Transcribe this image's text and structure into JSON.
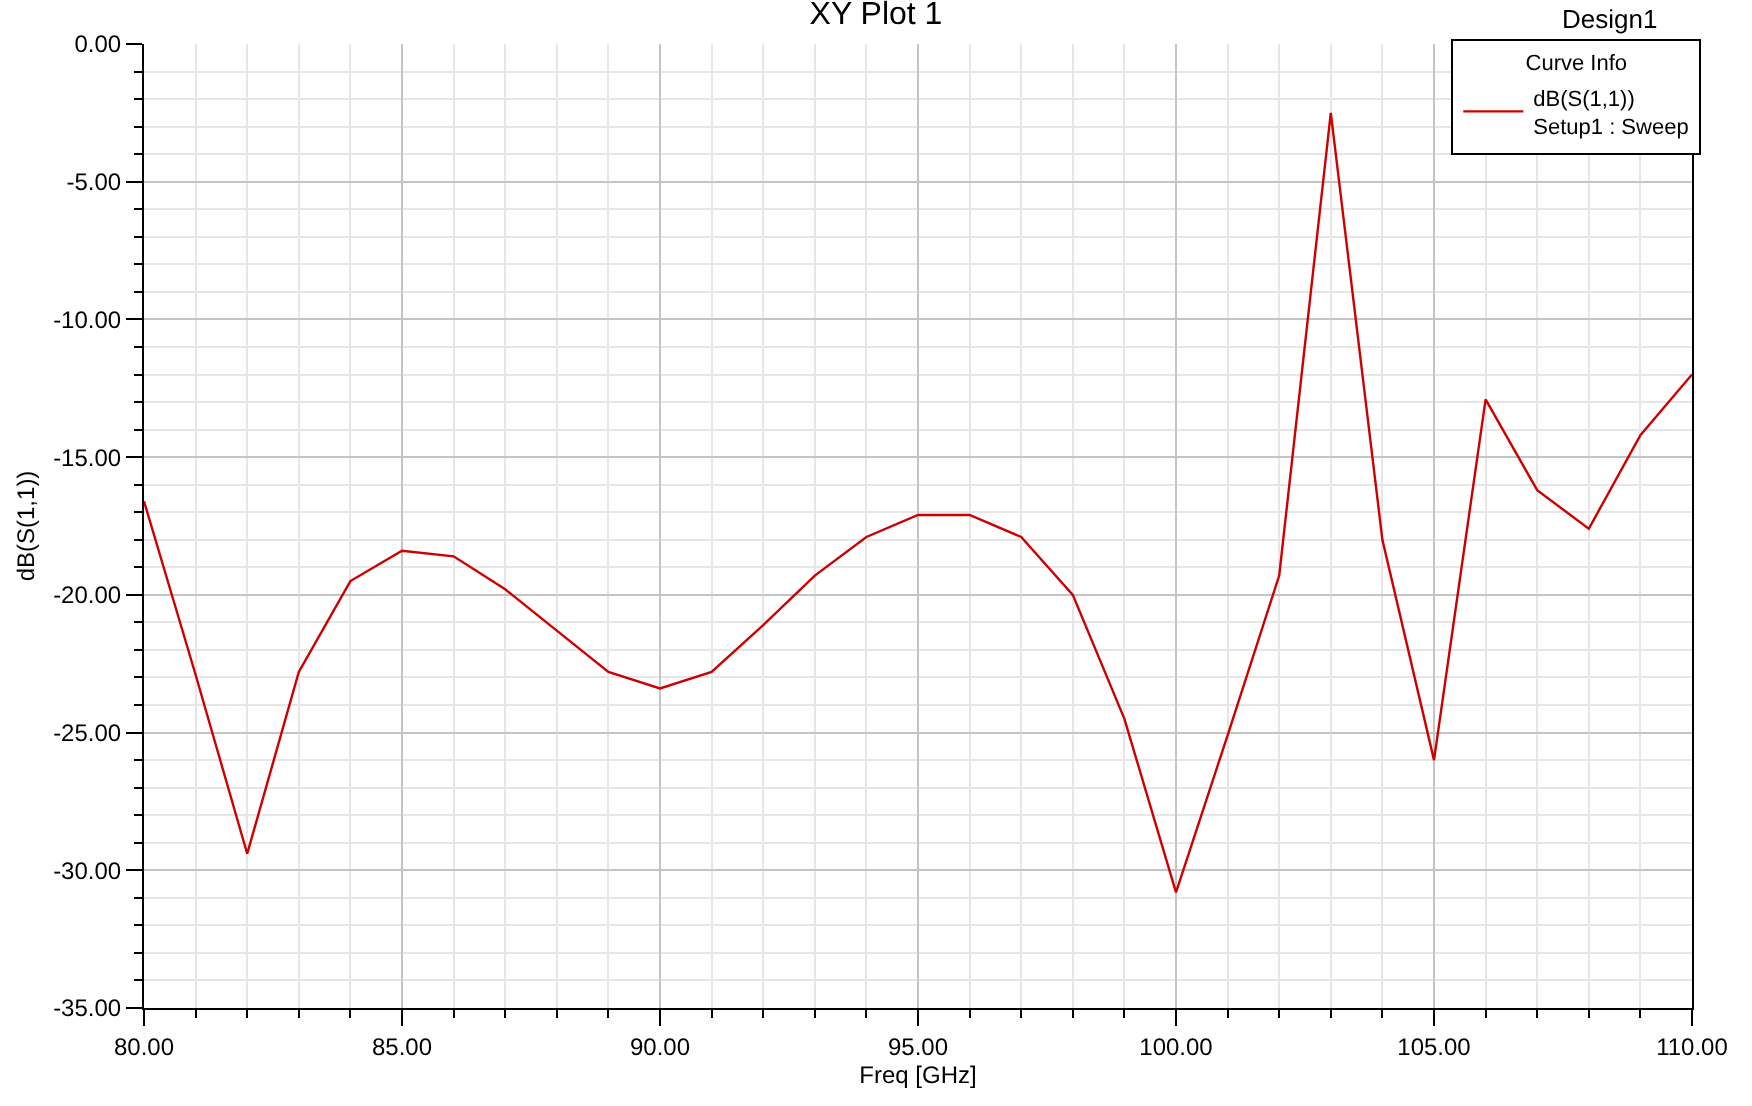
{
  "chart_data": {
    "type": "line",
    "title": "XY Plot 1",
    "xlabel": "Freq [GHz]",
    "ylabel": "dB(S(1,1))",
    "legend_title": "Curve Info",
    "annotations": [
      "Design1"
    ],
    "x": [
      80,
      81,
      82,
      83,
      84,
      85,
      86,
      87,
      88,
      89,
      90,
      91,
      92,
      93,
      94,
      95,
      96,
      97,
      98,
      99,
      100,
      101,
      102,
      103,
      104,
      105,
      106,
      107,
      108,
      109,
      110
    ],
    "series": [
      {
        "name": "dB(S(1,1))\nSetup1 : Sweep",
        "color": "#cc0000",
        "values": [
          -16.6,
          -22.9,
          -29.4,
          -22.8,
          -19.5,
          -18.4,
          -18.6,
          -19.8,
          -21.3,
          -22.8,
          -23.4,
          -22.8,
          -21.1,
          -19.3,
          -17.9,
          -17.1,
          -17.1,
          -17.9,
          -20.0,
          -24.5,
          -30.8,
          -25.1,
          -19.3,
          -2.5,
          -18.0,
          -26.0,
          -12.9,
          -16.2,
          -17.6,
          -14.2,
          -12.0
        ]
      }
    ],
    "xlim": [
      80,
      110
    ],
    "ylim": [
      -35,
      0
    ],
    "xticks": [
      {
        "value": 80,
        "label": "80.00"
      },
      {
        "value": 81,
        "label": null
      },
      {
        "value": 82,
        "label": null
      },
      {
        "value": 83,
        "label": null
      },
      {
        "value": 84,
        "label": null
      },
      {
        "value": 85,
        "label": "85.00"
      },
      {
        "value": 86,
        "label": null
      },
      {
        "value": 87,
        "label": null
      },
      {
        "value": 88,
        "label": null
      },
      {
        "value": 89,
        "label": null
      },
      {
        "value": 90,
        "label": "90.00"
      },
      {
        "value": 91,
        "label": null
      },
      {
        "value": 92,
        "label": null
      },
      {
        "value": 93,
        "label": null
      },
      {
        "value": 94,
        "label": null
      },
      {
        "value": 95,
        "label": "95.00"
      },
      {
        "value": 96,
        "label": null
      },
      {
        "value": 97,
        "label": null
      },
      {
        "value": 98,
        "label": null
      },
      {
        "value": 99,
        "label": null
      },
      {
        "value": 100,
        "label": "100.00"
      },
      {
        "value": 101,
        "label": null
      },
      {
        "value": 102,
        "label": null
      },
      {
        "value": 103,
        "label": null
      },
      {
        "value": 104,
        "label": null
      },
      {
        "value": 105,
        "label": "105.00"
      },
      {
        "value": 106,
        "label": null
      },
      {
        "value": 107,
        "label": null
      },
      {
        "value": 108,
        "label": null
      },
      {
        "value": 109,
        "label": null
      },
      {
        "value": 110,
        "label": "110.00"
      }
    ],
    "yticks": [
      {
        "value": 0,
        "label": "0.00"
      },
      {
        "value": -1,
        "label": null
      },
      {
        "value": -2,
        "label": null
      },
      {
        "value": -3,
        "label": null
      },
      {
        "value": -4,
        "label": null
      },
      {
        "value": -5,
        "label": "-5.00"
      },
      {
        "value": -6,
        "label": null
      },
      {
        "value": -7,
        "label": null
      },
      {
        "value": -8,
        "label": null
      },
      {
        "value": -9,
        "label": null
      },
      {
        "value": -10,
        "label": "-10.00"
      },
      {
        "value": -11,
        "label": null
      },
      {
        "value": -12,
        "label": null
      },
      {
        "value": -13,
        "label": null
      },
      {
        "value": -14,
        "label": null
      },
      {
        "value": -15,
        "label": "-15.00"
      },
      {
        "value": -16,
        "label": null
      },
      {
        "value": -17,
        "label": null
      },
      {
        "value": -18,
        "label": null
      },
      {
        "value": -19,
        "label": null
      },
      {
        "value": -20,
        "label": "-20.00"
      },
      {
        "value": -21,
        "label": null
      },
      {
        "value": -22,
        "label": null
      },
      {
        "value": -23,
        "label": null
      },
      {
        "value": -24,
        "label": null
      },
      {
        "value": -25,
        "label": "-25.00"
      },
      {
        "value": -26,
        "label": null
      },
      {
        "value": -27,
        "label": null
      },
      {
        "value": -28,
        "label": null
      },
      {
        "value": -29,
        "label": null
      },
      {
        "value": -30,
        "label": "-30.00"
      },
      {
        "value": -31,
        "label": null
      },
      {
        "value": -32,
        "label": null
      },
      {
        "value": -33,
        "label": null
      },
      {
        "value": -34,
        "label": null
      },
      {
        "value": -35,
        "label": "-35.00"
      }
    ],
    "grid": true,
    "legend": "top right",
    "line_style": "solid"
  }
}
